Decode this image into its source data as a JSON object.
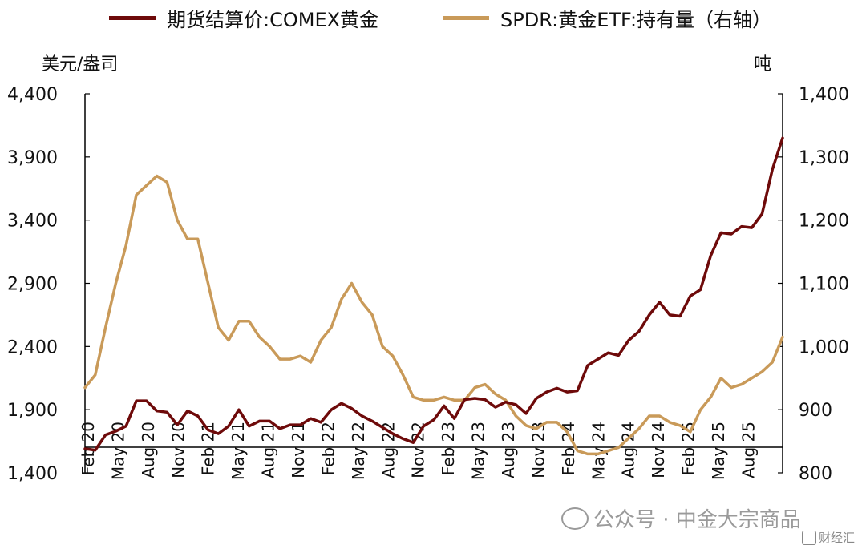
{
  "legend": {
    "series_1": "期货结算价:COMEX黄金",
    "series_2": "SPDR:黄金ETF:持有量（右轴）"
  },
  "units": {
    "left": "美元/盎司",
    "right": "吨"
  },
  "watermark": {
    "text": "公众号 · 中金大宗商品",
    "badge": "财经汇"
  },
  "colors": {
    "gold_price": "#6e0a0a",
    "spdr_holdings": "#c99a59",
    "axis": "#000000"
  },
  "chart_data": {
    "type": "line",
    "x_labels": [
      "Feb 20",
      "May 20",
      "Aug 20",
      "Nov 20",
      "Feb 21",
      "May 21",
      "Aug 21",
      "Nov 21",
      "Feb 22",
      "May 22",
      "Aug 22",
      "Nov 22",
      "Feb 23",
      "May 23",
      "Aug 23",
      "Nov 23",
      "Feb 24",
      "May 24",
      "Aug 24",
      "Nov 24",
      "Feb 25",
      "May 25",
      "Aug 25"
    ],
    "x_range": [
      "2020-02",
      "2025-10"
    ],
    "left_axis": {
      "min": 1400,
      "max": 4400,
      "ticks": [
        "1,400",
        "1,900",
        "2,400",
        "2,900",
        "3,400",
        "3,900",
        "4,400"
      ]
    },
    "right_axis": {
      "min": 800,
      "max": 1400,
      "ticks": [
        "800",
        "900",
        "1,000",
        "1,100",
        "1,200",
        "1,300",
        "1,400"
      ]
    },
    "series": [
      {
        "name": "期货结算价:COMEX黄金",
        "axis": "left",
        "points": [
          [
            "2020-02",
            1590
          ],
          [
            "2020-03",
            1580
          ],
          [
            "2020-04",
            1700
          ],
          [
            "2020-05",
            1730
          ],
          [
            "2020-06",
            1770
          ],
          [
            "2020-07",
            1970
          ],
          [
            "2020-08",
            1970
          ],
          [
            "2020-09",
            1890
          ],
          [
            "2020-10",
            1880
          ],
          [
            "2020-11",
            1780
          ],
          [
            "2020-12",
            1890
          ],
          [
            "2021-01",
            1850
          ],
          [
            "2021-02",
            1740
          ],
          [
            "2021-03",
            1710
          ],
          [
            "2021-04",
            1770
          ],
          [
            "2021-05",
            1900
          ],
          [
            "2021-06",
            1770
          ],
          [
            "2021-07",
            1810
          ],
          [
            "2021-08",
            1810
          ],
          [
            "2021-09",
            1750
          ],
          [
            "2021-10",
            1780
          ],
          [
            "2021-11",
            1780
          ],
          [
            "2021-12",
            1830
          ],
          [
            "2022-01",
            1800
          ],
          [
            "2022-02",
            1900
          ],
          [
            "2022-03",
            1950
          ],
          [
            "2022-04",
            1910
          ],
          [
            "2022-05",
            1850
          ],
          [
            "2022-06",
            1810
          ],
          [
            "2022-07",
            1760
          ],
          [
            "2022-08",
            1710
          ],
          [
            "2022-09",
            1670
          ],
          [
            "2022-10",
            1640
          ],
          [
            "2022-11",
            1770
          ],
          [
            "2022-12",
            1820
          ],
          [
            "2023-01",
            1930
          ],
          [
            "2023-02",
            1830
          ],
          [
            "2023-03",
            1980
          ],
          [
            "2023-04",
            1990
          ],
          [
            "2023-05",
            1980
          ],
          [
            "2023-06",
            1920
          ],
          [
            "2023-07",
            1960
          ],
          [
            "2023-08",
            1940
          ],
          [
            "2023-09",
            1870
          ],
          [
            "2023-10",
            1990
          ],
          [
            "2023-11",
            2040
          ],
          [
            "2023-12",
            2070
          ],
          [
            "2024-01",
            2040
          ],
          [
            "2024-02",
            2050
          ],
          [
            "2024-03",
            2250
          ],
          [
            "2024-04",
            2300
          ],
          [
            "2024-05",
            2350
          ],
          [
            "2024-06",
            2330
          ],
          [
            "2024-07",
            2450
          ],
          [
            "2024-08",
            2520
          ],
          [
            "2024-09",
            2650
          ],
          [
            "2024-10",
            2750
          ],
          [
            "2024-11",
            2650
          ],
          [
            "2024-12",
            2640
          ],
          [
            "2025-01",
            2800
          ],
          [
            "2025-02",
            2850
          ],
          [
            "2025-03",
            3120
          ],
          [
            "2025-04",
            3300
          ],
          [
            "2025-05",
            3290
          ],
          [
            "2025-06",
            3350
          ],
          [
            "2025-07",
            3340
          ],
          [
            "2025-08",
            3450
          ],
          [
            "2025-09",
            3800
          ],
          [
            "2025-10",
            4050
          ]
        ]
      },
      {
        "name": "SPDR:黄金ETF:持有量（右轴）",
        "axis": "right",
        "points": [
          [
            "2020-02",
            935
          ],
          [
            "2020-03",
            955
          ],
          [
            "2020-04",
            1030
          ],
          [
            "2020-05",
            1100
          ],
          [
            "2020-06",
            1160
          ],
          [
            "2020-07",
            1240
          ],
          [
            "2020-08",
            1255
          ],
          [
            "2020-09",
            1270
          ],
          [
            "2020-10",
            1260
          ],
          [
            "2020-11",
            1200
          ],
          [
            "2020-12",
            1170
          ],
          [
            "2021-01",
            1170
          ],
          [
            "2021-02",
            1100
          ],
          [
            "2021-03",
            1030
          ],
          [
            "2021-04",
            1010
          ],
          [
            "2021-05",
            1040
          ],
          [
            "2021-06",
            1040
          ],
          [
            "2021-07",
            1015
          ],
          [
            "2021-08",
            1000
          ],
          [
            "2021-09",
            980
          ],
          [
            "2021-10",
            980
          ],
          [
            "2021-11",
            985
          ],
          [
            "2021-12",
            975
          ],
          [
            "2022-01",
            1010
          ],
          [
            "2022-02",
            1030
          ],
          [
            "2022-03",
            1075
          ],
          [
            "2022-04",
            1100
          ],
          [
            "2022-05",
            1070
          ],
          [
            "2022-06",
            1050
          ],
          [
            "2022-07",
            1000
          ],
          [
            "2022-08",
            985
          ],
          [
            "2022-09",
            955
          ],
          [
            "2022-10",
            920
          ],
          [
            "2022-11",
            915
          ],
          [
            "2022-12",
            915
          ],
          [
            "2023-01",
            920
          ],
          [
            "2023-02",
            915
          ],
          [
            "2023-03",
            915
          ],
          [
            "2023-04",
            935
          ],
          [
            "2023-05",
            940
          ],
          [
            "2023-06",
            925
          ],
          [
            "2023-07",
            915
          ],
          [
            "2023-08",
            890
          ],
          [
            "2023-09",
            875
          ],
          [
            "2023-10",
            870
          ],
          [
            "2023-11",
            880
          ],
          [
            "2023-12",
            880
          ],
          [
            "2024-01",
            865
          ],
          [
            "2024-02",
            835
          ],
          [
            "2024-03",
            830
          ],
          [
            "2024-04",
            830
          ],
          [
            "2024-05",
            835
          ],
          [
            "2024-06",
            840
          ],
          [
            "2024-07",
            855
          ],
          [
            "2024-08",
            870
          ],
          [
            "2024-09",
            890
          ],
          [
            "2024-10",
            890
          ],
          [
            "2024-11",
            880
          ],
          [
            "2024-12",
            875
          ],
          [
            "2025-01",
            865
          ],
          [
            "2025-02",
            900
          ],
          [
            "2025-03",
            920
          ],
          [
            "2025-04",
            950
          ],
          [
            "2025-05",
            935
          ],
          [
            "2025-06",
            940
          ],
          [
            "2025-07",
            950
          ],
          [
            "2025-08",
            960
          ],
          [
            "2025-09",
            975
          ],
          [
            "2025-10",
            1015
          ]
        ]
      }
    ]
  }
}
